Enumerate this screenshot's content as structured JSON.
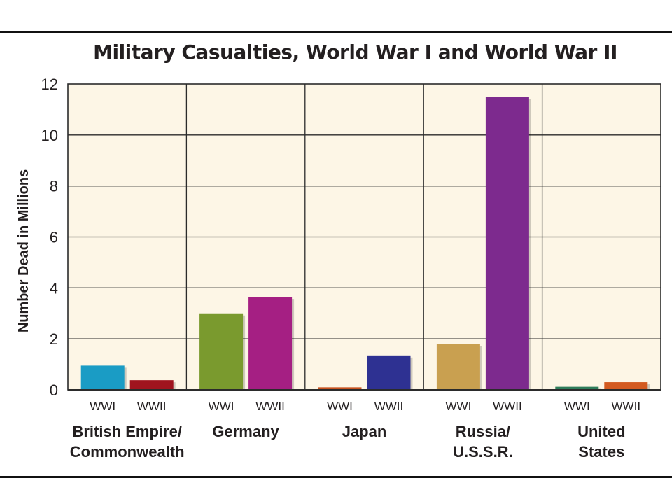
{
  "chart_data": {
    "type": "bar",
    "title": "Military Casualties, World War I and World War II",
    "ylabel": "Number Dead in Millions",
    "xlabel": "",
    "ylim": [
      0,
      12
    ],
    "yticks": [
      "0",
      "2",
      "4",
      "6",
      "8",
      "10",
      "12"
    ],
    "grid": true,
    "background": "#fdf6e6",
    "groups": [
      {
        "name": "British Empire/ Commonwealth",
        "label_lines": [
          "British Empire/",
          "Commonwealth"
        ],
        "bars": [
          {
            "label": "WWI",
            "value": 0.95,
            "color": "#1a9cc5"
          },
          {
            "label": "WWII",
            "value": 0.38,
            "color": "#a0141e"
          }
        ]
      },
      {
        "name": "Germany",
        "label_lines": [
          "Germany"
        ],
        "bars": [
          {
            "label": "WWI",
            "value": 3.0,
            "color": "#7a9a2e"
          },
          {
            "label": "WWII",
            "value": 3.65,
            "color": "#a51f83"
          }
        ]
      },
      {
        "name": "Japan",
        "label_lines": [
          "Japan"
        ],
        "bars": [
          {
            "label": "WWI",
            "value": 0.1,
            "color": "#c8521f"
          },
          {
            "label": "WWII",
            "value": 1.35,
            "color": "#2e3192"
          }
        ]
      },
      {
        "name": "Russia/ U.S.S.R.",
        "label_lines": [
          "Russia/",
          "U.S.S.R."
        ],
        "bars": [
          {
            "label": "WWI",
            "value": 1.8,
            "color": "#c9a050"
          },
          {
            "label": "WWII",
            "value": 11.5,
            "color": "#7d2a8e"
          }
        ]
      },
      {
        "name": "United States",
        "label_lines": [
          "United",
          "States"
        ],
        "bars": [
          {
            "label": "WWI",
            "value": 0.12,
            "color": "#2e7d5b"
          },
          {
            "label": "WWII",
            "value": 0.3,
            "color": "#d35a20"
          }
        ]
      }
    ]
  }
}
